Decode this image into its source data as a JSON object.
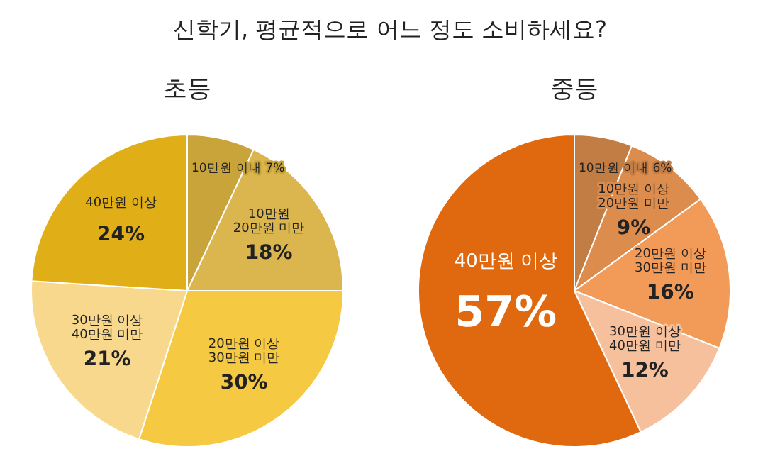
{
  "chart_data": [
    {
      "type": "pie",
      "title": "초등",
      "annotations": [
        "신학기, 평균적으로 어느 정도 소비하세요?"
      ],
      "categories": [
        "10만원 이내",
        "10만원\n20만원 미만",
        "20만원 이상\n30만원 미만",
        "30만원 이상\n40만원 미만",
        "40만원 이상"
      ],
      "values": [
        7,
        18,
        30,
        21,
        24
      ],
      "value_labels": [
        "7%",
        "18%",
        "30%",
        "21%",
        "24%"
      ],
      "colors": [
        "#c9a43a",
        "#dbb54e",
        "#f6c943",
        "#f8d88c",
        "#e0ae17"
      ]
    },
    {
      "type": "pie",
      "title": "중등",
      "categories": [
        "10만원 이내",
        "10만원 이상\n20만원 미만",
        "20만원 이상\n30만원 미만",
        "30만원 이상\n40만원 미만",
        "40만원 이상"
      ],
      "values": [
        6,
        9,
        16,
        12,
        57
      ],
      "value_labels": [
        "6%",
        "9%",
        "16%",
        "12%",
        "57%"
      ],
      "colors": [
        "#c27d45",
        "#dc8c4c",
        "#f29b58",
        "#f7c09d",
        "#e0690f"
      ]
    }
  ]
}
